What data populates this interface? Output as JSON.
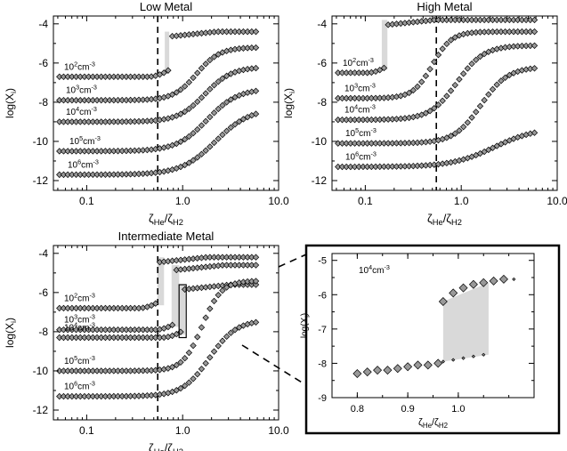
{
  "figure": {
    "xlabel_main": "ζ",
    "xlabel_sub1": "He",
    "xlabel_sep": "/ζ",
    "xlabel_sub2": "H2",
    "ylabel_main": "log(X",
    "ylabel_sub": "i",
    "ylabel_close": ")",
    "density_unit": "cm",
    "density_exp": "-3",
    "density_base": "10",
    "colors": {
      "marker_fill": "#999999",
      "shade": "#d9d9d9",
      "line": "#000000"
    }
  },
  "chart_data": [
    {
      "id": "low",
      "type": "scatter",
      "title": "Low Metal",
      "xscale": "log",
      "xlim": [
        0.045,
        10.0
      ],
      "ylim": [
        -12.5,
        -3.6
      ],
      "xticks": [
        "0.1",
        "1.0",
        "10.0"
      ],
      "yticks": [
        -4,
        -6,
        -8,
        -10,
        -12
      ],
      "vline_x": 0.55,
      "series": [
        {
          "name": "10^2cm^-3",
          "exp": "2",
          "y_low": -6.7,
          "y_high": -4.4,
          "x_mid": 0.72,
          "width": 0.02,
          "jump_x": 0.72,
          "jump_shade": [
            0.68,
            0.72
          ]
        },
        {
          "name": "10^3cm^-3",
          "exp": "3",
          "y_low": -7.9,
          "y_high": -5.2,
          "x_mid": 1.4,
          "width": 0.12
        },
        {
          "name": "10^4cm^-3",
          "exp": "4",
          "y_low": -9.0,
          "y_high": -6.2,
          "x_mid": 1.7,
          "width": 0.14
        },
        {
          "name": "10^5cm^-3",
          "exp": "5",
          "y_low": -10.5,
          "y_high": -7.3,
          "x_mid": 1.8,
          "width": 0.16
        },
        {
          "name": "10^6cm^-3",
          "exp": "6",
          "y_low": -11.7,
          "y_high": -8.3,
          "x_mid": 2.2,
          "width": 0.18
        }
      ]
    },
    {
      "id": "high",
      "type": "scatter",
      "title": "High Metal",
      "xscale": "log",
      "xlim": [
        0.045,
        10.0
      ],
      "ylim": [
        -12.5,
        -3.6
      ],
      "xticks": [
        "0.1",
        "1.0",
        "10.0"
      ],
      "yticks": [
        -4,
        -6,
        -8,
        -10,
        -12
      ],
      "vline_x": 0.55,
      "series": [
        {
          "name": "10^2cm^-3",
          "exp": "2",
          "y_low": -6.5,
          "y_high": -3.8,
          "x_mid": 0.18,
          "width": 0.02,
          "jump_x": 0.17,
          "jump_shade": [
            0.155,
            0.17
          ]
        },
        {
          "name": "10^3cm^-3",
          "exp": "3",
          "y_low": -7.8,
          "y_high": -4.4,
          "x_mid": 0.5,
          "width": 0.1
        },
        {
          "name": "10^4cm^-3",
          "exp": "4",
          "y_low": -8.9,
          "y_high": -5.1,
          "x_mid": 0.9,
          "width": 0.14
        },
        {
          "name": "10^5cm^-3",
          "exp": "5",
          "y_low": -10.1,
          "y_high": -6.2,
          "x_mid": 1.6,
          "width": 0.14
        },
        {
          "name": "10^6cm^-3",
          "exp": "6",
          "y_low": -11.3,
          "y_high": -9.3,
          "x_mid": 2.2,
          "width": 0.22
        }
      ]
    },
    {
      "id": "intermediate",
      "type": "scatter",
      "title": "Intermediate Metal",
      "xscale": "log",
      "xlim": [
        0.045,
        10.0
      ],
      "ylim": [
        -12.5,
        -3.6
      ],
      "xticks": [
        "0.1",
        "1.0",
        "10.0"
      ],
      "yticks": [
        -4,
        -6,
        -8,
        -10,
        -12
      ],
      "vline_x": 0.55,
      "series": [
        {
          "name": "10^2cm^-3",
          "exp": "2",
          "y_low": -6.8,
          "y_high": -4.2,
          "x_mid": 0.58,
          "width": 0.02,
          "jump_x": 0.57,
          "jump_shade": [
            0.57,
            0.64
          ]
        },
        {
          "name": "10^3cm^-3",
          "exp": "3",
          "y_low": -7.9,
          "y_high": -4.6,
          "x_mid": 0.85,
          "width": 0.02,
          "jump_x": 0.85,
          "jump_shade": [
            0.8,
            0.92
          ]
        },
        {
          "name": "10^4cm^-3",
          "exp": "4",
          "y_low": -8.3,
          "y_high": -5.6,
          "x_mid": 1.0,
          "width": 0.02,
          "jump_x": 1.0,
          "jump_shade": [
            0.97,
            1.06
          ]
        },
        {
          "name": "10^5cm^-3",
          "exp": "5",
          "y_low": -10.0,
          "y_high": -5.4,
          "x_mid": 1.6,
          "width": 0.1
        },
        {
          "name": "10^6cm^-3",
          "exp": "6",
          "y_low": -11.3,
          "y_high": -7.4,
          "x_mid": 1.9,
          "width": 0.14
        }
      ]
    },
    {
      "id": "inset",
      "type": "scatter",
      "title": "",
      "label_exp": "4",
      "xscale": "linear",
      "xlim": [
        0.75,
        1.15
      ],
      "ylim": [
        -9.0,
        -4.8
      ],
      "xticks": [
        "0.8",
        "0.9",
        "1.0"
      ],
      "yticks": [
        -5,
        -6,
        -7,
        -8,
        -9
      ],
      "shade_x": [
        0.97,
        1.06
      ],
      "lower_branch": {
        "x": [
          0.8,
          0.82,
          0.84,
          0.86,
          0.88,
          0.9,
          0.92,
          0.94,
          0.96
        ],
        "y": [
          -8.3,
          -8.25,
          -8.2,
          -8.2,
          -8.15,
          -8.1,
          -8.05,
          -8.05,
          -8.0
        ]
      },
      "lower_small": {
        "x": [
          0.97,
          0.99,
          1.01,
          1.03,
          1.05
        ],
        "y": [
          -7.95,
          -7.9,
          -7.85,
          -7.8,
          -7.75
        ]
      },
      "upper_branch": {
        "x": [
          0.97,
          0.99,
          1.01,
          1.03,
          1.05,
          1.07,
          1.09
        ],
        "y": [
          -6.2,
          -5.95,
          -5.8,
          -5.7,
          -5.65,
          -5.6,
          -5.55
        ]
      },
      "upper_small": {
        "x": [
          1.11
        ],
        "y": [
          -5.55
        ]
      }
    }
  ]
}
